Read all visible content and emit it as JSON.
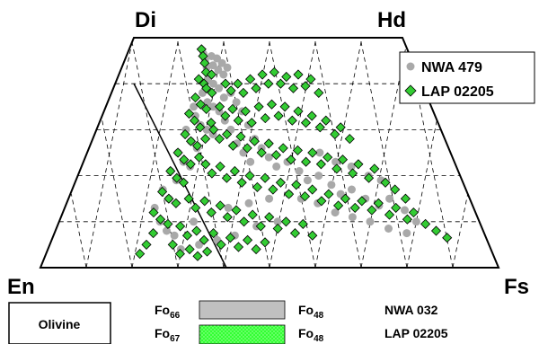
{
  "chart_data": {
    "type": "scatter",
    "diagram": "pyroxene quadrilateral",
    "corners": {
      "top_left": "Di",
      "top_right": "Hd",
      "bottom_left": "En",
      "bottom_right": "Fs"
    },
    "grid": true,
    "legend_position": "top-right",
    "x_field": "Fs fraction (0 = Di/En side, 1 = Hd/Fs side)",
    "y_field": "Wo fraction (0 = En-Fs base, 1 = Di-Hd top)",
    "series": [
      {
        "name": "NWA 479",
        "marker": "circle",
        "color": "#a9a9a9",
        "points": [
          [
            0.27,
            0.93
          ],
          [
            0.28,
            0.9
          ],
          [
            0.29,
            0.87
          ],
          [
            0.3,
            0.92
          ],
          [
            0.31,
            0.88
          ],
          [
            0.32,
            0.91
          ],
          [
            0.33,
            0.86
          ],
          [
            0.34,
            0.89
          ],
          [
            0.35,
            0.84
          ],
          [
            0.36,
            0.87
          ],
          [
            0.3,
            0.82
          ],
          [
            0.32,
            0.8
          ],
          [
            0.34,
            0.78
          ],
          [
            0.36,
            0.74
          ],
          [
            0.29,
            0.76
          ],
          [
            0.31,
            0.72
          ],
          [
            0.33,
            0.7
          ],
          [
            0.35,
            0.68
          ],
          [
            0.27,
            0.7
          ],
          [
            0.28,
            0.66
          ],
          [
            0.3,
            0.62
          ],
          [
            0.32,
            0.6
          ],
          [
            0.34,
            0.58
          ],
          [
            0.26,
            0.6
          ],
          [
            0.28,
            0.55
          ],
          [
            0.3,
            0.52
          ],
          [
            0.25,
            0.5
          ],
          [
            0.27,
            0.46
          ],
          [
            0.29,
            0.44
          ],
          [
            0.24,
            0.42
          ],
          [
            0.26,
            0.38
          ],
          [
            0.23,
            0.34
          ],
          [
            0.25,
            0.3
          ],
          [
            0.22,
            0.26
          ],
          [
            0.24,
            0.2
          ],
          [
            0.26,
            0.16
          ],
          [
            0.28,
            0.14
          ],
          [
            0.38,
            0.76
          ],
          [
            0.4,
            0.72
          ],
          [
            0.42,
            0.68
          ],
          [
            0.37,
            0.64
          ],
          [
            0.39,
            0.6
          ],
          [
            0.44,
            0.62
          ],
          [
            0.46,
            0.56
          ],
          [
            0.41,
            0.54
          ],
          [
            0.43,
            0.5
          ],
          [
            0.48,
            0.52
          ],
          [
            0.5,
            0.48
          ],
          [
            0.45,
            0.46
          ],
          [
            0.52,
            0.44
          ],
          [
            0.55,
            0.46
          ],
          [
            0.58,
            0.42
          ],
          [
            0.6,
            0.38
          ],
          [
            0.63,
            0.4
          ],
          [
            0.66,
            0.36
          ],
          [
            0.68,
            0.32
          ],
          [
            0.71,
            0.34
          ],
          [
            0.74,
            0.3
          ],
          [
            0.77,
            0.27
          ],
          [
            0.8,
            0.3
          ],
          [
            0.83,
            0.25
          ],
          [
            0.85,
            0.2
          ],
          [
            0.55,
            0.32
          ],
          [
            0.58,
            0.3
          ],
          [
            0.62,
            0.28
          ],
          [
            0.66,
            0.24
          ],
          [
            0.7,
            0.22
          ],
          [
            0.74,
            0.2
          ],
          [
            0.78,
            0.17
          ],
          [
            0.82,
            0.15
          ],
          [
            0.64,
            0.5
          ],
          [
            0.68,
            0.46
          ],
          [
            0.72,
            0.44
          ],
          [
            0.76,
            0.4
          ],
          [
            0.79,
            0.38
          ],
          [
            0.5,
            0.3
          ],
          [
            0.45,
            0.28
          ],
          [
            0.4,
            0.26
          ],
          [
            0.36,
            0.24
          ],
          [
            0.32,
            0.2
          ],
          [
            0.3,
            0.08
          ],
          [
            0.34,
            0.1
          ],
          [
            0.38,
            0.12
          ],
          [
            0.42,
            0.14
          ],
          [
            0.47,
            0.18
          ],
          [
            0.52,
            0.2
          ]
        ]
      },
      {
        "name": "LAP 02205",
        "marker": "diamond",
        "color": "#33cc33",
        "points": [
          [
            0.26,
            0.95
          ],
          [
            0.27,
            0.92
          ],
          [
            0.28,
            0.89
          ],
          [
            0.29,
            0.85
          ],
          [
            0.27,
            0.82
          ],
          [
            0.29,
            0.8
          ],
          [
            0.31,
            0.84
          ],
          [
            0.3,
            0.78
          ],
          [
            0.32,
            0.76
          ],
          [
            0.27,
            0.74
          ],
          [
            0.29,
            0.71
          ],
          [
            0.31,
            0.69
          ],
          [
            0.26,
            0.67
          ],
          [
            0.28,
            0.64
          ],
          [
            0.3,
            0.61
          ],
          [
            0.33,
            0.63
          ],
          [
            0.26,
            0.58
          ],
          [
            0.28,
            0.55
          ],
          [
            0.3,
            0.53
          ],
          [
            0.32,
            0.56
          ],
          [
            0.25,
            0.5
          ],
          [
            0.27,
            0.47
          ],
          [
            0.29,
            0.45
          ],
          [
            0.31,
            0.48
          ],
          [
            0.24,
            0.42
          ],
          [
            0.26,
            0.39
          ],
          [
            0.28,
            0.37
          ],
          [
            0.23,
            0.33
          ],
          [
            0.25,
            0.3
          ],
          [
            0.27,
            0.28
          ],
          [
            0.22,
            0.24
          ],
          [
            0.24,
            0.21
          ],
          [
            0.26,
            0.19
          ],
          [
            0.23,
            0.15
          ],
          [
            0.22,
            0.1
          ],
          [
            0.21,
            0.06
          ],
          [
            0.36,
            0.8
          ],
          [
            0.38,
            0.77
          ],
          [
            0.4,
            0.8
          ],
          [
            0.42,
            0.76
          ],
          [
            0.44,
            0.82
          ],
          [
            0.46,
            0.78
          ],
          [
            0.48,
            0.84
          ],
          [
            0.5,
            0.8
          ],
          [
            0.52,
            0.85
          ],
          [
            0.54,
            0.8
          ],
          [
            0.56,
            0.83
          ],
          [
            0.58,
            0.78
          ],
          [
            0.6,
            0.84
          ],
          [
            0.62,
            0.79
          ],
          [
            0.64,
            0.82
          ],
          [
            0.66,
            0.76
          ],
          [
            0.35,
            0.7
          ],
          [
            0.37,
            0.66
          ],
          [
            0.39,
            0.69
          ],
          [
            0.41,
            0.64
          ],
          [
            0.43,
            0.68
          ],
          [
            0.45,
            0.63
          ],
          [
            0.47,
            0.7
          ],
          [
            0.49,
            0.65
          ],
          [
            0.51,
            0.71
          ],
          [
            0.53,
            0.66
          ],
          [
            0.55,
            0.7
          ],
          [
            0.57,
            0.64
          ],
          [
            0.59,
            0.68
          ],
          [
            0.61,
            0.63
          ],
          [
            0.63,
            0.66
          ],
          [
            0.65,
            0.61
          ],
          [
            0.67,
            0.64
          ],
          [
            0.69,
            0.58
          ],
          [
            0.71,
            0.61
          ],
          [
            0.73,
            0.56
          ],
          [
            0.34,
            0.6
          ],
          [
            0.36,
            0.56
          ],
          [
            0.38,
            0.58
          ],
          [
            0.4,
            0.53
          ],
          [
            0.42,
            0.57
          ],
          [
            0.44,
            0.52
          ],
          [
            0.46,
            0.55
          ],
          [
            0.48,
            0.5
          ],
          [
            0.5,
            0.54
          ],
          [
            0.52,
            0.49
          ],
          [
            0.54,
            0.52
          ],
          [
            0.56,
            0.47
          ],
          [
            0.58,
            0.51
          ],
          [
            0.6,
            0.46
          ],
          [
            0.62,
            0.5
          ],
          [
            0.64,
            0.45
          ],
          [
            0.66,
            0.48
          ],
          [
            0.68,
            0.43
          ],
          [
            0.7,
            0.47
          ],
          [
            0.72,
            0.41
          ],
          [
            0.74,
            0.45
          ],
          [
            0.76,
            0.39
          ],
          [
            0.78,
            0.43
          ],
          [
            0.8,
            0.37
          ],
          [
            0.82,
            0.34
          ],
          [
            0.84,
            0.3
          ],
          [
            0.33,
            0.45
          ],
          [
            0.35,
            0.41
          ],
          [
            0.37,
            0.44
          ],
          [
            0.39,
            0.39
          ],
          [
            0.41,
            0.42
          ],
          [
            0.43,
            0.37
          ],
          [
            0.45,
            0.4
          ],
          [
            0.47,
            0.35
          ],
          [
            0.49,
            0.39
          ],
          [
            0.51,
            0.34
          ],
          [
            0.53,
            0.37
          ],
          [
            0.55,
            0.32
          ],
          [
            0.57,
            0.36
          ],
          [
            0.59,
            0.31
          ],
          [
            0.61,
            0.34
          ],
          [
            0.63,
            0.29
          ],
          [
            0.65,
            0.32
          ],
          [
            0.67,
            0.27
          ],
          [
            0.69,
            0.3
          ],
          [
            0.71,
            0.26
          ],
          [
            0.73,
            0.29
          ],
          [
            0.75,
            0.25
          ],
          [
            0.77,
            0.28
          ],
          [
            0.79,
            0.23
          ],
          [
            0.81,
            0.26
          ],
          [
            0.83,
            0.21
          ],
          [
            0.85,
            0.24
          ],
          [
            0.87,
            0.19
          ],
          [
            0.89,
            0.16
          ],
          [
            0.91,
            0.13
          ],
          [
            0.3,
            0.3
          ],
          [
            0.32,
            0.26
          ],
          [
            0.34,
            0.29
          ],
          [
            0.36,
            0.24
          ],
          [
            0.38,
            0.27
          ],
          [
            0.4,
            0.22
          ],
          [
            0.42,
            0.25
          ],
          [
            0.44,
            0.2
          ],
          [
            0.46,
            0.23
          ],
          [
            0.48,
            0.18
          ],
          [
            0.5,
            0.22
          ],
          [
            0.52,
            0.17
          ],
          [
            0.54,
            0.2
          ],
          [
            0.56,
            0.15
          ],
          [
            0.58,
            0.19
          ],
          [
            0.6,
            0.14
          ],
          [
            0.29,
            0.18
          ],
          [
            0.31,
            0.14
          ],
          [
            0.33,
            0.16
          ],
          [
            0.35,
            0.12
          ],
          [
            0.37,
            0.15
          ],
          [
            0.39,
            0.1
          ],
          [
            0.41,
            0.13
          ],
          [
            0.43,
            0.09
          ],
          [
            0.45,
            0.12
          ],
          [
            0.47,
            0.08
          ],
          [
            0.49,
            0.11
          ],
          [
            0.28,
            0.1
          ],
          [
            0.3,
            0.06
          ],
          [
            0.32,
            0.08
          ],
          [
            0.34,
            0.05
          ],
          [
            0.36,
            0.07
          ]
        ]
      }
    ],
    "olivine": {
      "title": "Olivine",
      "rows": [
        {
          "start_label": "Fo",
          "start_sub": "66",
          "end_label": "Fo",
          "end_sub": "48",
          "sample": "NWA 032",
          "color": "#c0c0c0",
          "pattern": "solid"
        },
        {
          "start_label": "Fo",
          "start_sub": "67",
          "end_label": "Fo",
          "end_sub": "48",
          "sample": "LAP 02205",
          "color": "#33ff33",
          "pattern": "dotted"
        }
      ]
    }
  }
}
